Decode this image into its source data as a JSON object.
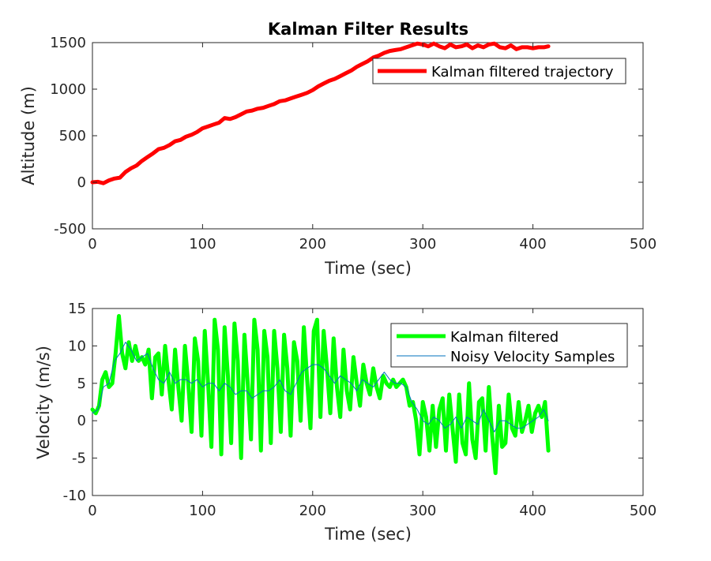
{
  "chart_data": [
    {
      "type": "line",
      "title": "Kalman Filter Results",
      "xlabel": "Time (sec)",
      "ylabel": "Altitude (m)",
      "xlim": [
        0,
        500
      ],
      "ylim": [
        -500,
        1500
      ],
      "xticks": [
        "0",
        "100",
        "200",
        "300",
        "400",
        "500"
      ],
      "yticks": [
        "-500",
        "0",
        "500",
        "1000",
        "1500"
      ],
      "grid": false,
      "legend_position": "top-right",
      "series": [
        {
          "name": "Kalman filtered trajectory",
          "color": "#ff0000",
          "x": [
            0,
            5,
            10,
            15,
            20,
            25,
            30,
            35,
            40,
            45,
            50,
            55,
            60,
            65,
            70,
            75,
            80,
            85,
            90,
            95,
            100,
            105,
            110,
            115,
            120,
            125,
            130,
            135,
            140,
            145,
            150,
            155,
            160,
            165,
            170,
            175,
            180,
            185,
            190,
            195,
            200,
            205,
            210,
            215,
            220,
            225,
            230,
            235,
            240,
            245,
            250,
            255,
            260,
            265,
            270,
            275,
            280,
            285,
            290,
            295,
            300,
            305,
            310,
            315,
            320,
            325,
            330,
            335,
            340,
            345,
            350,
            355,
            360,
            365,
            370,
            375,
            380,
            385,
            390,
            395,
            400,
            405,
            410,
            414
          ],
          "y": [
            0,
            5,
            -10,
            20,
            40,
            50,
            110,
            150,
            180,
            230,
            270,
            310,
            355,
            370,
            400,
            440,
            455,
            490,
            510,
            540,
            580,
            600,
            620,
            640,
            690,
            680,
            700,
            730,
            760,
            770,
            790,
            800,
            820,
            840,
            870,
            880,
            900,
            920,
            940,
            960,
            990,
            1030,
            1060,
            1090,
            1110,
            1140,
            1170,
            1200,
            1240,
            1270,
            1300,
            1340,
            1360,
            1390,
            1410,
            1420,
            1430,
            1450,
            1470,
            1490,
            1480,
            1460,
            1490,
            1460,
            1440,
            1480,
            1450,
            1460,
            1480,
            1440,
            1470,
            1450,
            1480,
            1490,
            1450,
            1440,
            1470,
            1430,
            1450,
            1450,
            1440,
            1450,
            1450,
            1460
          ]
        }
      ]
    },
    {
      "type": "line",
      "title": "",
      "xlabel": "Time (sec)",
      "ylabel": "Velocity (m/s)",
      "xlim": [
        0,
        500
      ],
      "ylim": [
        -10,
        15
      ],
      "xticks": [
        "0",
        "100",
        "200",
        "300",
        "400",
        "500"
      ],
      "yticks": [
        "-10",
        "-5",
        "0",
        "5",
        "10",
        "15"
      ],
      "grid": false,
      "legend_position": "top-right",
      "series": [
        {
          "name": "Kalman filtered",
          "color": "#00ff00",
          "x": [
            0,
            3,
            6,
            9,
            12,
            15,
            18,
            21,
            24,
            27,
            30,
            33,
            36,
            39,
            42,
            45,
            48,
            51,
            54,
            57,
            60,
            63,
            66,
            69,
            72,
            75,
            78,
            81,
            84,
            87,
            90,
            93,
            96,
            99,
            102,
            105,
            108,
            111,
            114,
            117,
            120,
            123,
            126,
            129,
            132,
            135,
            138,
            141,
            144,
            147,
            150,
            153,
            156,
            159,
            162,
            165,
            168,
            171,
            174,
            177,
            180,
            183,
            186,
            189,
            192,
            195,
            198,
            201,
            204,
            207,
            210,
            213,
            216,
            219,
            222,
            225,
            228,
            231,
            234,
            237,
            240,
            243,
            246,
            249,
            252,
            255,
            258,
            261,
            264,
            267,
            270,
            273,
            276,
            279,
            282,
            285,
            288,
            291,
            294,
            297,
            300,
            303,
            306,
            309,
            312,
            315,
            318,
            321,
            324,
            327,
            330,
            333,
            336,
            339,
            342,
            345,
            348,
            351,
            354,
            357,
            360,
            363,
            366,
            369,
            372,
            375,
            378,
            381,
            384,
            387,
            390,
            393,
            396,
            399,
            402,
            405,
            408,
            411,
            414
          ],
          "y": [
            1.5,
            1.0,
            2.0,
            5.5,
            6.5,
            4.5,
            5.0,
            9.0,
            14.0,
            9.0,
            7.0,
            10.5,
            8.0,
            10.0,
            8.0,
            8.5,
            7.5,
            9.5,
            3.0,
            8.5,
            9.0,
            3.5,
            10.0,
            5.5,
            1.5,
            9.5,
            4.5,
            0.0,
            10.0,
            5.0,
            -1.5,
            11.0,
            8.0,
            -2.0,
            12.0,
            5.0,
            -3.5,
            13.5,
            9.5,
            -4.5,
            12.5,
            6.0,
            -3.0,
            13.0,
            8.0,
            -5.0,
            11.5,
            5.0,
            -2.5,
            13.5,
            9.5,
            -4.0,
            12.0,
            8.5,
            -3.0,
            12.0,
            7.0,
            -1.5,
            11.5,
            7.0,
            -2.0,
            10.5,
            8.0,
            0.0,
            12.5,
            5.5,
            -1.0,
            12.0,
            13.5,
            0.5,
            12.0,
            7.0,
            1.0,
            11.0,
            4.5,
            0.5,
            9.5,
            4.0,
            1.5,
            8.5,
            5.0,
            2.0,
            7.5,
            5.0,
            3.5,
            7.0,
            4.5,
            3.0,
            6.0,
            5.0,
            4.5,
            5.5,
            4.5,
            5.0,
            5.5,
            4.5,
            2.0,
            2.5,
            0.0,
            -4.5,
            2.5,
            0.5,
            -4.0,
            2.0,
            -3.5,
            1.5,
            3.0,
            -4.0,
            3.5,
            -1.0,
            -5.5,
            3.5,
            -3.0,
            -4.5,
            5.0,
            -2.5,
            -5.0,
            2.5,
            3.0,
            -4.0,
            4.5,
            -2.0,
            -7.0,
            2.0,
            -3.5,
            -3.0,
            3.5,
            -1.0,
            -2.0,
            2.5,
            -1.5,
            0.0,
            2.0,
            -1.5,
            1.0,
            2.0,
            0.5,
            2.5,
            -4.0
          ]
        },
        {
          "name": "Noisy Velocity Samples",
          "color": "#0072bd",
          "x": [
            0,
            5,
            10,
            15,
            20,
            25,
            30,
            35,
            40,
            45,
            50,
            55,
            60,
            65,
            70,
            75,
            80,
            85,
            90,
            95,
            100,
            105,
            110,
            115,
            120,
            125,
            130,
            135,
            140,
            145,
            150,
            155,
            160,
            165,
            170,
            175,
            180,
            185,
            190,
            195,
            200,
            205,
            210,
            215,
            220,
            225,
            230,
            235,
            240,
            245,
            250,
            255,
            260,
            265,
            270,
            275,
            280,
            285,
            290,
            295,
            300,
            305,
            310,
            315,
            320,
            325,
            330,
            335,
            340,
            345,
            350,
            355,
            360,
            365,
            370,
            375,
            380,
            385,
            390,
            395,
            400,
            405,
            410,
            414
          ],
          "y": [
            1.0,
            1.5,
            4.5,
            5.0,
            8.0,
            9.0,
            10.5,
            9.5,
            8.0,
            8.5,
            9.0,
            7.0,
            5.5,
            5.0,
            6.5,
            5.0,
            5.5,
            5.5,
            5.0,
            5.5,
            4.5,
            5.0,
            5.0,
            4.0,
            5.0,
            4.5,
            3.5,
            4.0,
            4.0,
            3.0,
            3.5,
            4.0,
            4.0,
            4.5,
            5.5,
            4.0,
            3.5,
            5.0,
            6.5,
            7.0,
            7.5,
            7.5,
            7.0,
            6.0,
            5.0,
            6.0,
            5.5,
            5.0,
            4.0,
            5.5,
            5.0,
            4.5,
            5.5,
            6.5,
            5.5,
            5.0,
            5.0,
            4.5,
            2.5,
            1.5,
            0.0,
            -0.5,
            0.5,
            0.0,
            -1.0,
            -0.5,
            0.5,
            -1.0,
            0.5,
            0.0,
            -0.5,
            1.5,
            0.0,
            -1.5,
            0.0,
            0.0,
            -0.5,
            -1.0,
            -1.0,
            -0.5,
            0.0,
            0.5,
            1.5,
            0.0
          ]
        }
      ]
    }
  ]
}
